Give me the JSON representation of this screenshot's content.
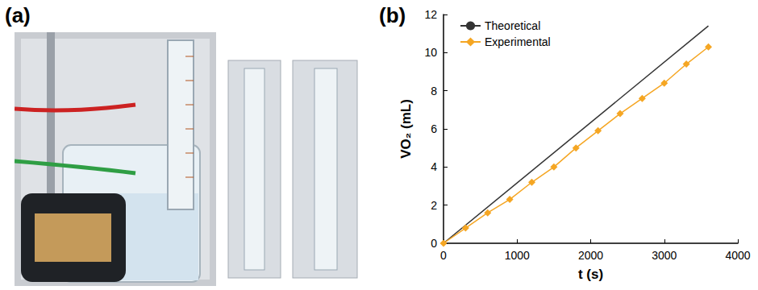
{
  "photo_panel": {
    "label": "(a)"
  },
  "chart_data": {
    "type": "line",
    "panel_label": "(b)",
    "x_label": "t (s)",
    "y_label": "VO₂ (mL)",
    "xlim": [
      0,
      4000
    ],
    "xticks": [
      0,
      1000,
      2000,
      3000,
      4000
    ],
    "ylim": [
      0,
      12
    ],
    "yticks": [
      0,
      2,
      4,
      6,
      8,
      10,
      12
    ],
    "grid": false,
    "legend": "upper left",
    "series": [
      {
        "name": "Theoretical",
        "color": "#333333",
        "marker": "none",
        "line_style": "solid",
        "x": [
          0,
          3600
        ],
        "values": [
          0,
          11.4
        ]
      },
      {
        "name": "Experimental",
        "color": "#f5a623",
        "marker": "diamond",
        "line_style": "solid",
        "x": [
          0,
          300,
          600,
          900,
          1200,
          1500,
          1800,
          2100,
          2400,
          2700,
          3000,
          3300,
          3600
        ],
        "values": [
          0,
          0.8,
          1.6,
          2.3,
          3.2,
          4.0,
          5.0,
          5.9,
          6.8,
          7.6,
          8.4,
          9.4,
          10.3
        ]
      }
    ]
  }
}
